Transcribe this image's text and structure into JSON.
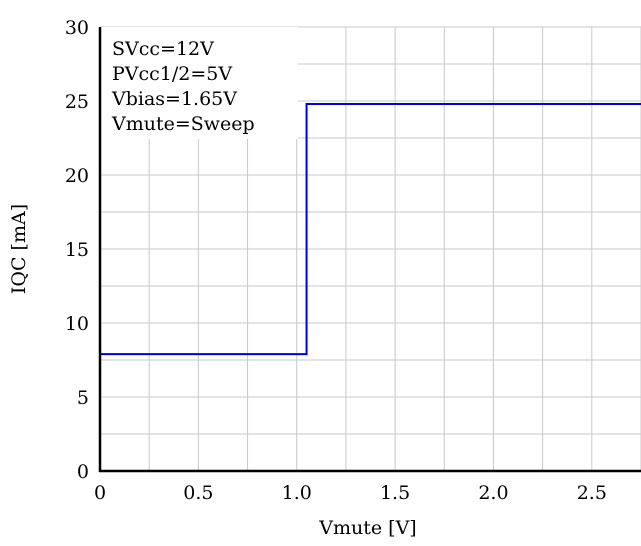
{
  "chart_data": {
    "type": "line",
    "xlabel": "Vmute [V]",
    "ylabel": "IQC [mA]",
    "xlim": [
      0,
      2.75
    ],
    "ylim": [
      0,
      30
    ],
    "xticks": [
      "0",
      "0.5",
      "1.0",
      "1.5",
      "2.0",
      "2.5"
    ],
    "xtick_values": [
      0,
      0.5,
      1.0,
      1.5,
      2.0,
      2.5
    ],
    "yticks": [
      "0",
      "5",
      "10",
      "15",
      "20",
      "25",
      "30"
    ],
    "ytick_values": [
      0,
      5,
      10,
      15,
      20,
      25,
      30
    ],
    "grid": true,
    "annotation_lines": [
      "SVcc=12V",
      "PVcc1/2=5V",
      "Vbias=1.65V",
      "Vmute=Sweep"
    ],
    "series": [
      {
        "color": "#0000dd",
        "x": [
          0,
          1.05,
          1.05,
          2.75
        ],
        "y": [
          7.9,
          7.9,
          24.8,
          24.8
        ]
      }
    ]
  }
}
